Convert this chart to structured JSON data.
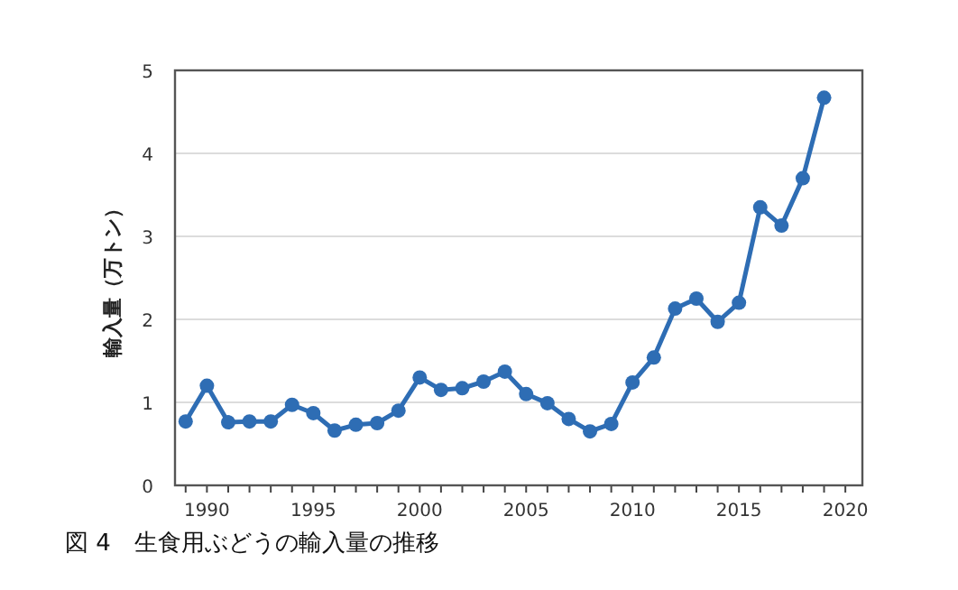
{
  "chart_data": {
    "type": "line",
    "title": "図 4　生食用ぶどうの輸入量の推移",
    "ylabel": "輸入量（万トン）",
    "x": [
      1989,
      1990,
      1991,
      1992,
      1993,
      1994,
      1995,
      1996,
      1997,
      1998,
      1999,
      2000,
      2001,
      2002,
      2003,
      2004,
      2005,
      2006,
      2007,
      2008,
      2009,
      2010,
      2011,
      2012,
      2013,
      2014,
      2015,
      2016,
      2017,
      2018,
      2019
    ],
    "values": [
      0.77,
      1.2,
      0.76,
      0.77,
      0.77,
      0.97,
      0.87,
      0.66,
      0.73,
      0.75,
      0.9,
      1.3,
      1.15,
      1.17,
      1.25,
      1.37,
      1.1,
      0.99,
      0.8,
      0.65,
      0.74,
      1.24,
      1.54,
      2.13,
      2.25,
      1.97,
      2.2,
      3.35,
      3.13,
      3.7,
      4.67
    ],
    "color": "#2e6db4",
    "marker": "circle",
    "grid": "y",
    "xlim": [
      1988.5,
      2020.8
    ],
    "ylim": [
      0,
      5
    ],
    "xticks": [
      {
        "value": 1989,
        "label": null
      },
      1990,
      {
        "value": 1991,
        "label": null
      },
      {
        "value": 1992,
        "label": null
      },
      {
        "value": 1993,
        "label": null
      },
      {
        "value": 1994,
        "label": null
      },
      1995,
      {
        "value": 1996,
        "label": null
      },
      {
        "value": 1997,
        "label": null
      },
      {
        "value": 1998,
        "label": null
      },
      {
        "value": 1999,
        "label": null
      },
      2000,
      {
        "value": 2001,
        "label": null
      },
      {
        "value": 2002,
        "label": null
      },
      {
        "value": 2003,
        "label": null
      },
      {
        "value": 2004,
        "label": null
      },
      2005,
      {
        "value": 2006,
        "label": null
      },
      {
        "value": 2007,
        "label": null
      },
      {
        "value": 2008,
        "label": null
      },
      {
        "value": 2009,
        "label": null
      },
      2010,
      {
        "value": 2011,
        "label": null
      },
      {
        "value": 2012,
        "label": null
      },
      {
        "value": 2013,
        "label": null
      },
      {
        "value": 2014,
        "label": null
      },
      2015,
      {
        "value": 2016,
        "label": null
      },
      {
        "value": 2017,
        "label": null
      },
      {
        "value": 2018,
        "label": null
      },
      {
        "value": 2019,
        "label": null
      },
      2020
    ],
    "yticks": [
      0,
      1,
      2,
      3,
      4,
      5
    ]
  }
}
